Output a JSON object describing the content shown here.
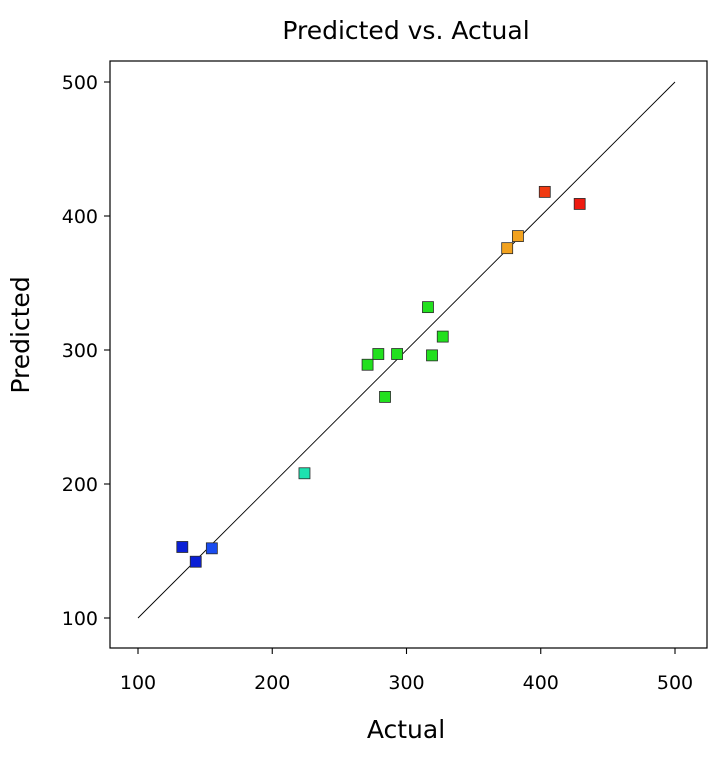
{
  "chart_data": {
    "type": "scatter",
    "title": "Predicted vs. Actual",
    "xlabel": "Actual",
    "ylabel": "Predicted",
    "xlim": [
      100,
      500
    ],
    "ylim": [
      100,
      500
    ],
    "x_ticks": [
      "100",
      "200",
      "300",
      "400",
      "500"
    ],
    "y_ticks": [
      "100",
      "200",
      "300",
      "400",
      "500"
    ],
    "grid": false,
    "reference_line": {
      "from": [
        100,
        100
      ],
      "to": [
        500,
        500
      ]
    },
    "points": [
      {
        "x": 133,
        "y": 153,
        "color": "#0a1fd6"
      },
      {
        "x": 143,
        "y": 142,
        "color": "#0a1fd6"
      },
      {
        "x": 155,
        "y": 152,
        "color": "#1a4cf0"
      },
      {
        "x": 224,
        "y": 208,
        "color": "#1de2b0"
      },
      {
        "x": 271,
        "y": 289,
        "color": "#22e01e"
      },
      {
        "x": 279,
        "y": 297,
        "color": "#22e01e"
      },
      {
        "x": 284,
        "y": 265,
        "color": "#22e01e"
      },
      {
        "x": 293,
        "y": 297,
        "color": "#22e01e"
      },
      {
        "x": 316,
        "y": 332,
        "color": "#22e01e"
      },
      {
        "x": 319,
        "y": 296,
        "color": "#22e01e"
      },
      {
        "x": 327,
        "y": 310,
        "color": "#22e01e"
      },
      {
        "x": 375,
        "y": 376,
        "color": "#f2a21f"
      },
      {
        "x": 383,
        "y": 385,
        "color": "#f2a21f"
      },
      {
        "x": 403,
        "y": 418,
        "color": "#f03a12"
      },
      {
        "x": 429,
        "y": 409,
        "color": "#ee1a10"
      }
    ]
  }
}
